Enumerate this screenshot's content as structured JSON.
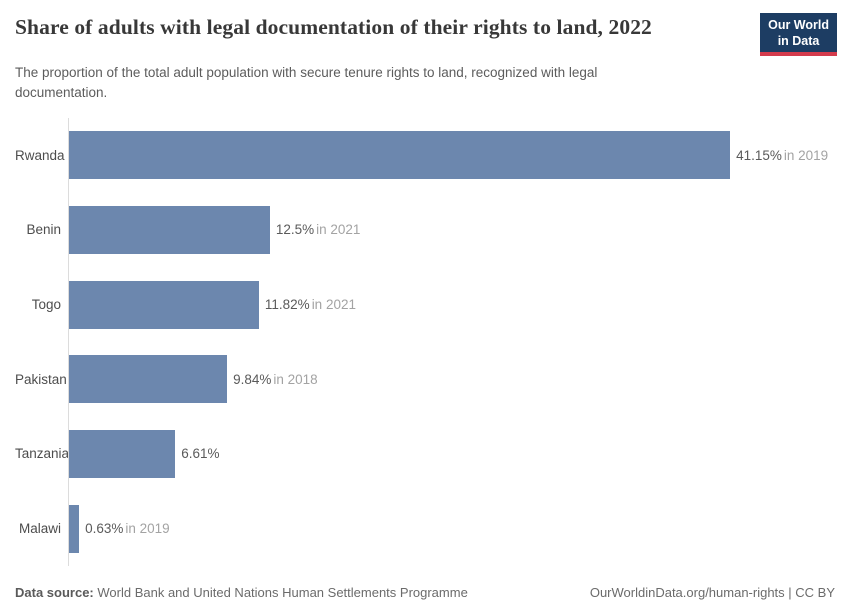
{
  "header": {
    "title": "Share of adults with legal documentation of their rights to land, 2022",
    "subtitle": "The proportion of the total adult population with secure tenure rights to land, recognized with legal documentation.",
    "logo": {
      "line1": "Our World",
      "line2": "in Data"
    }
  },
  "chart_data": {
    "type": "bar",
    "orientation": "horizontal",
    "title": "Share of adults with legal documentation of their rights to land, 2022",
    "subtitle": "The proportion of the total adult population with secure tenure rights to land, recognized with legal documentation.",
    "categories": [
      "Rwanda",
      "Benin",
      "Togo",
      "Pakistan",
      "Tanzania",
      "Malawi"
    ],
    "values": [
      41.15,
      12.5,
      11.82,
      9.84,
      6.61,
      0.63
    ],
    "value_labels": [
      "41.15%",
      "12.5%",
      "11.82%",
      "9.84%",
      "6.61%",
      "0.63%"
    ],
    "year_labels": [
      "in 2019",
      "in 2021",
      "in 2021",
      "in 2018",
      "",
      "in 2019"
    ],
    "xlabel": "",
    "ylabel": "",
    "xlim": [
      0,
      47.68
    ],
    "grid": false,
    "legend": "none",
    "bar_color": "#6c87ae",
    "axis_color": "#dcdcdc"
  },
  "footer": {
    "datasource_label": "Data source:",
    "datasource_value": "World Bank and United Nations Human Settlements Programme",
    "credit": "OurWorldinData.org/human-rights | CC BY"
  },
  "colors": {
    "bar": "#6c87ae",
    "logo_navy": "#1d3d63",
    "logo_red": "#d43b4c",
    "title_text": "#383838",
    "subtitle_text": "#5c5c5c",
    "value_text": "#5a5a5a",
    "year_text": "#a3a3a3"
  }
}
